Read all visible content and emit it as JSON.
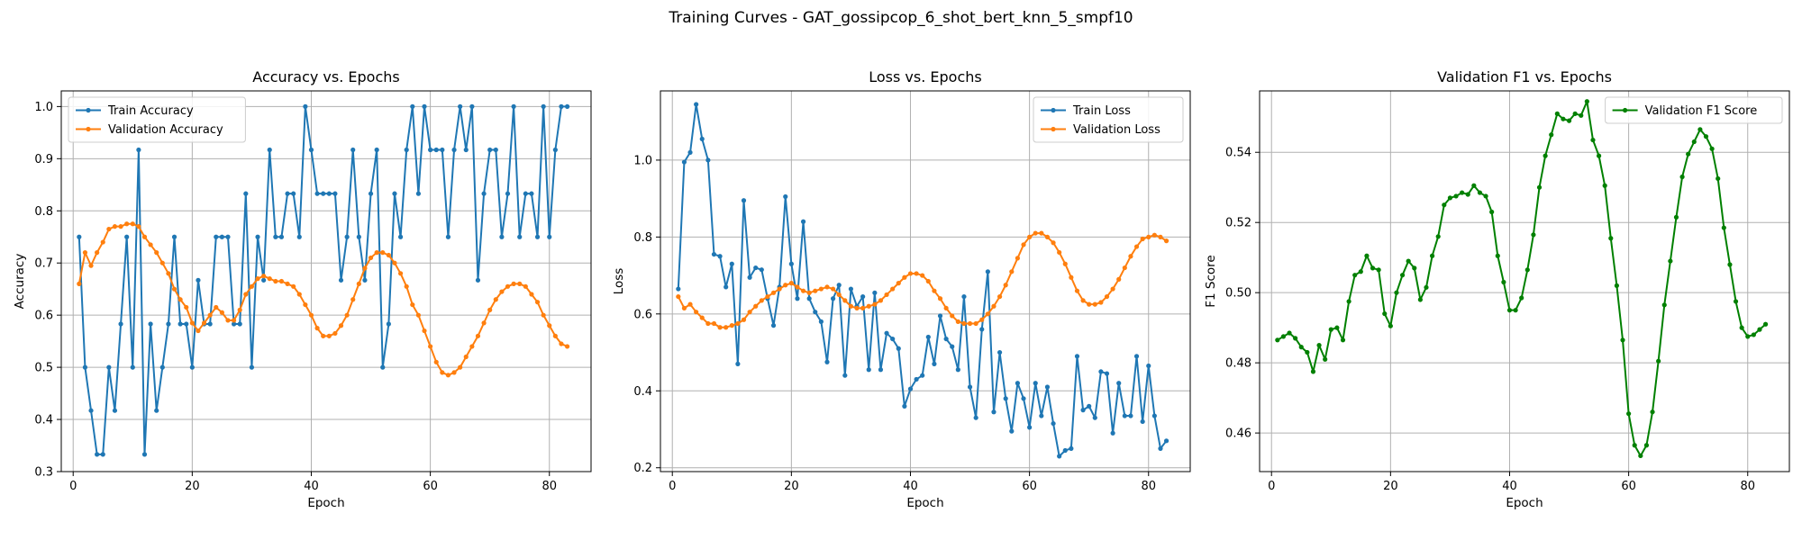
{
  "figure_title": "Training Curves - GAT_gossipcop_6_shot_bert_knn_5_smpf10",
  "colors": {
    "train": "#1f77b4",
    "validation": "#ff7f0e",
    "f1": "#008000",
    "grid": "#b0b0b0"
  },
  "chart_data": [
    {
      "type": "line",
      "title": "Accuracy vs. Epochs",
      "xlabel": "Epoch",
      "ylabel": "Accuracy",
      "xlim": [
        -2,
        87
      ],
      "ylim": [
        0.3,
        1.03
      ],
      "xticks": [
        0,
        20,
        40,
        60,
        80
      ],
      "yticks": [
        0.3,
        0.4,
        0.5,
        0.6,
        0.7,
        0.8,
        0.9,
        1.0
      ],
      "ytick_labels": [
        "0.3",
        "0.4",
        "0.5",
        "0.6",
        "0.7",
        "0.8",
        "0.9",
        "1.0"
      ],
      "legend_position": "upper-left",
      "grid": true,
      "series": [
        {
          "name": "Train Accuracy",
          "color": "#1f77b4",
          "x": [
            1,
            2,
            3,
            4,
            5,
            6,
            7,
            8,
            9,
            10,
            11,
            12,
            13,
            14,
            15,
            16,
            17,
            18,
            19,
            20,
            21,
            22,
            23,
            24,
            25,
            26,
            27,
            28,
            29,
            30,
            31,
            32,
            33,
            34,
            35,
            36,
            37,
            38,
            39,
            40,
            41,
            42,
            43,
            44,
            45,
            46,
            47,
            48,
            49,
            50,
            51,
            52,
            53,
            54,
            55,
            56,
            57,
            58,
            59,
            60,
            61,
            62,
            63,
            64,
            65,
            66,
            67,
            68,
            69,
            70,
            71,
            72,
            73,
            74,
            75,
            76,
            77,
            78,
            79,
            80,
            81,
            82,
            83
          ],
          "values": [
            0.75,
            0.5,
            0.417,
            0.333,
            0.333,
            0.5,
            0.417,
            0.583,
            0.75,
            0.5,
            0.917,
            0.333,
            0.583,
            0.417,
            0.5,
            0.583,
            0.75,
            0.583,
            0.583,
            0.5,
            0.667,
            0.583,
            0.583,
            0.75,
            0.75,
            0.75,
            0.583,
            0.583,
            0.833,
            0.5,
            0.75,
            0.667,
            0.917,
            0.75,
            0.75,
            0.833,
            0.833,
            0.75,
            1.0,
            0.917,
            0.833,
            0.833,
            0.833,
            0.833,
            0.667,
            0.75,
            0.917,
            0.75,
            0.667,
            0.833,
            0.917,
            0.5,
            0.583,
            0.833,
            0.75,
            0.917,
            1.0,
            0.833,
            1.0,
            0.917,
            0.917,
            0.917,
            0.75,
            0.917,
            1.0,
            0.917,
            1.0,
            0.667,
            0.833,
            0.917,
            0.917,
            0.75,
            0.833,
            1.0,
            0.75,
            0.833,
            0.833,
            0.75,
            1.0,
            0.75,
            0.917,
            1.0,
            1.0
          ]
        },
        {
          "name": "Validation Accuracy",
          "color": "#ff7f0e",
          "x": [
            1,
            2,
            3,
            4,
            5,
            6,
            7,
            8,
            9,
            10,
            11,
            12,
            13,
            14,
            15,
            16,
            17,
            18,
            19,
            20,
            21,
            22,
            23,
            24,
            25,
            26,
            27,
            28,
            29,
            30,
            31,
            32,
            33,
            34,
            35,
            36,
            37,
            38,
            39,
            40,
            41,
            42,
            43,
            44,
            45,
            46,
            47,
            48,
            49,
            50,
            51,
            52,
            53,
            54,
            55,
            56,
            57,
            58,
            59,
            60,
            61,
            62,
            63,
            64,
            65,
            66,
            67,
            68,
            69,
            70,
            71,
            72,
            73,
            74,
            75,
            76,
            77,
            78,
            79,
            80,
            81,
            82,
            83
          ],
          "values": [
            0.66,
            0.72,
            0.695,
            0.72,
            0.74,
            0.765,
            0.77,
            0.77,
            0.775,
            0.775,
            0.77,
            0.75,
            0.735,
            0.72,
            0.7,
            0.68,
            0.65,
            0.63,
            0.615,
            0.585,
            0.57,
            0.585,
            0.6,
            0.615,
            0.605,
            0.59,
            0.59,
            0.61,
            0.64,
            0.655,
            0.67,
            0.675,
            0.67,
            0.665,
            0.665,
            0.66,
            0.655,
            0.64,
            0.62,
            0.6,
            0.575,
            0.56,
            0.56,
            0.565,
            0.58,
            0.6,
            0.63,
            0.66,
            0.69,
            0.71,
            0.72,
            0.72,
            0.715,
            0.7,
            0.68,
            0.655,
            0.62,
            0.6,
            0.57,
            0.54,
            0.51,
            0.49,
            0.485,
            0.49,
            0.5,
            0.52,
            0.54,
            0.56,
            0.585,
            0.61,
            0.63,
            0.645,
            0.655,
            0.66,
            0.66,
            0.655,
            0.64,
            0.625,
            0.6,
            0.58,
            0.56,
            0.545,
            0.54
          ]
        }
      ]
    },
    {
      "type": "line",
      "title": "Loss vs. Epochs",
      "xlabel": "Epoch",
      "ylabel": "Loss",
      "xlim": [
        -2,
        87
      ],
      "ylim": [
        0.19,
        1.18
      ],
      "xticks": [
        0,
        20,
        40,
        60,
        80
      ],
      "yticks": [
        0.2,
        0.4,
        0.6,
        0.8,
        1.0
      ],
      "ytick_labels": [
        "0.2",
        "0.4",
        "0.6",
        "0.8",
        "1.0"
      ],
      "legend_position": "upper-right",
      "grid": true,
      "series": [
        {
          "name": "Train Loss",
          "color": "#1f77b4",
          "x": [
            1,
            2,
            3,
            4,
            5,
            6,
            7,
            8,
            9,
            10,
            11,
            12,
            13,
            14,
            15,
            16,
            17,
            18,
            19,
            20,
            21,
            22,
            23,
            24,
            25,
            26,
            27,
            28,
            29,
            30,
            31,
            32,
            33,
            34,
            35,
            36,
            37,
            38,
            39,
            40,
            41,
            42,
            43,
            44,
            45,
            46,
            47,
            48,
            49,
            50,
            51,
            52,
            53,
            54,
            55,
            56,
            57,
            58,
            59,
            60,
            61,
            62,
            63,
            64,
            65,
            66,
            67,
            68,
            69,
            70,
            71,
            72,
            73,
            74,
            75,
            76,
            77,
            78,
            79,
            80,
            81,
            82,
            83
          ],
          "values": [
            0.665,
            0.995,
            1.02,
            1.145,
            1.055,
            1.0,
            0.755,
            0.75,
            0.67,
            0.73,
            0.47,
            0.895,
            0.695,
            0.72,
            0.715,
            0.64,
            0.57,
            0.67,
            0.905,
            0.73,
            0.64,
            0.84,
            0.64,
            0.605,
            0.58,
            0.475,
            0.64,
            0.675,
            0.44,
            0.665,
            0.62,
            0.645,
            0.455,
            0.655,
            0.455,
            0.55,
            0.535,
            0.51,
            0.36,
            0.405,
            0.43,
            0.44,
            0.54,
            0.47,
            0.595,
            0.535,
            0.515,
            0.455,
            0.645,
            0.41,
            0.33,
            0.56,
            0.71,
            0.345,
            0.5,
            0.38,
            0.295,
            0.42,
            0.38,
            0.305,
            0.42,
            0.335,
            0.41,
            0.315,
            0.23,
            0.245,
            0.25,
            0.49,
            0.35,
            0.36,
            0.33,
            0.45,
            0.445,
            0.29,
            0.42,
            0.335,
            0.335,
            0.49,
            0.32,
            0.465,
            0.335,
            0.25,
            0.27
          ]
        },
        {
          "name": "Validation Loss",
          "color": "#ff7f0e",
          "x": [
            1,
            2,
            3,
            4,
            5,
            6,
            7,
            8,
            9,
            10,
            11,
            12,
            13,
            14,
            15,
            16,
            17,
            18,
            19,
            20,
            21,
            22,
            23,
            24,
            25,
            26,
            27,
            28,
            29,
            30,
            31,
            32,
            33,
            34,
            35,
            36,
            37,
            38,
            39,
            40,
            41,
            42,
            43,
            44,
            45,
            46,
            47,
            48,
            49,
            50,
            51,
            52,
            53,
            54,
            55,
            56,
            57,
            58,
            59,
            60,
            61,
            62,
            63,
            64,
            65,
            66,
            67,
            68,
            69,
            70,
            71,
            72,
            73,
            74,
            75,
            76,
            77,
            78,
            79,
            80,
            81,
            82,
            83
          ],
          "values": [
            0.645,
            0.615,
            0.625,
            0.605,
            0.59,
            0.575,
            0.575,
            0.565,
            0.565,
            0.57,
            0.575,
            0.585,
            0.605,
            0.62,
            0.635,
            0.645,
            0.655,
            0.665,
            0.675,
            0.68,
            0.67,
            0.66,
            0.655,
            0.66,
            0.665,
            0.67,
            0.665,
            0.65,
            0.635,
            0.62,
            0.615,
            0.615,
            0.62,
            0.625,
            0.635,
            0.65,
            0.665,
            0.68,
            0.695,
            0.705,
            0.705,
            0.7,
            0.685,
            0.66,
            0.64,
            0.615,
            0.595,
            0.58,
            0.575,
            0.575,
            0.575,
            0.585,
            0.6,
            0.62,
            0.645,
            0.675,
            0.71,
            0.745,
            0.78,
            0.8,
            0.81,
            0.81,
            0.8,
            0.785,
            0.76,
            0.73,
            0.695,
            0.66,
            0.635,
            0.625,
            0.625,
            0.63,
            0.645,
            0.665,
            0.69,
            0.72,
            0.75,
            0.775,
            0.795,
            0.8,
            0.805,
            0.8,
            0.79
          ]
        }
      ]
    },
    {
      "type": "line",
      "title": "Validation F1 vs. Epochs",
      "xlabel": "Epoch",
      "ylabel": "F1 Score",
      "xlim": [
        -2,
        87
      ],
      "ylim": [
        0.449,
        0.5575
      ],
      "xticks": [
        0,
        20,
        40,
        60,
        80
      ],
      "yticks": [
        0.46,
        0.48,
        0.5,
        0.52,
        0.54
      ],
      "ytick_labels": [
        "0.46",
        "0.48",
        "0.50",
        "0.52",
        "0.54"
      ],
      "legend_position": "upper-right",
      "grid": true,
      "series": [
        {
          "name": "Validation F1 Score",
          "color": "#008000",
          "x": [
            1,
            2,
            3,
            4,
            5,
            6,
            7,
            8,
            9,
            10,
            11,
            12,
            13,
            14,
            15,
            16,
            17,
            18,
            19,
            20,
            21,
            22,
            23,
            24,
            25,
            26,
            27,
            28,
            29,
            30,
            31,
            32,
            33,
            34,
            35,
            36,
            37,
            38,
            39,
            40,
            41,
            42,
            43,
            44,
            45,
            46,
            47,
            48,
            49,
            50,
            51,
            52,
            53,
            54,
            55,
            56,
            57,
            58,
            59,
            60,
            61,
            62,
            63,
            64,
            65,
            66,
            67,
            68,
            69,
            70,
            71,
            72,
            73,
            74,
            75,
            76,
            77,
            78,
            79,
            80,
            81,
            82,
            83
          ],
          "values": [
            0.4865,
            0.4875,
            0.4885,
            0.487,
            0.4845,
            0.483,
            0.4775,
            0.485,
            0.481,
            0.4895,
            0.49,
            0.4865,
            0.4975,
            0.505,
            0.506,
            0.5105,
            0.507,
            0.5065,
            0.494,
            0.4905,
            0.5,
            0.505,
            0.509,
            0.507,
            0.498,
            0.5015,
            0.5105,
            0.516,
            0.525,
            0.527,
            0.5275,
            0.5285,
            0.528,
            0.5305,
            0.5285,
            0.5275,
            0.523,
            0.5105,
            0.503,
            0.495,
            0.495,
            0.4985,
            0.5065,
            0.5165,
            0.53,
            0.539,
            0.545,
            0.551,
            0.5495,
            0.549,
            0.551,
            0.5505,
            0.5545,
            0.5435,
            0.539,
            0.5305,
            0.5155,
            0.502,
            0.4865,
            0.4655,
            0.4565,
            0.4535,
            0.4565,
            0.466,
            0.4805,
            0.4965,
            0.509,
            0.5215,
            0.533,
            0.5395,
            0.543,
            0.5465,
            0.5445,
            0.541,
            0.5325,
            0.5185,
            0.508,
            0.4975,
            0.49,
            0.4875,
            0.488,
            0.4895,
            0.491
          ]
        }
      ]
    }
  ]
}
